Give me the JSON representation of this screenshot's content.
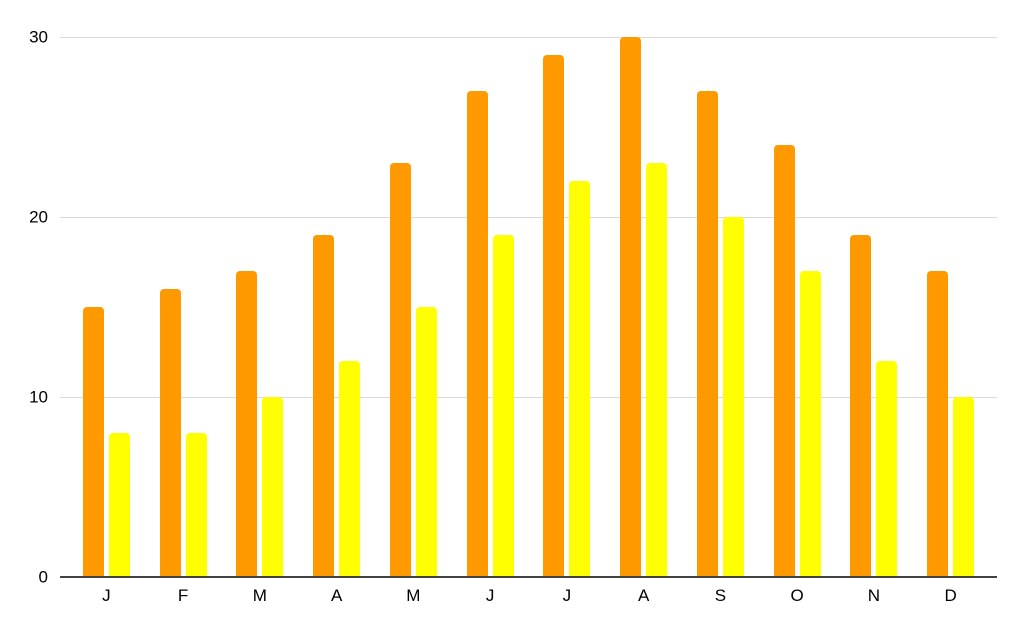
{
  "chart_data": {
    "type": "bar",
    "title": "",
    "xlabel": "",
    "ylabel": "",
    "categories": [
      "J",
      "F",
      "M",
      "A",
      "M",
      "J",
      "J",
      "A",
      "S",
      "O",
      "N",
      "D"
    ],
    "series": [
      {
        "name": "series-1-orange",
        "color": "#FF9900",
        "values": [
          15,
          16,
          17,
          19,
          23,
          27,
          29,
          30,
          27,
          24,
          19,
          17
        ]
      },
      {
        "name": "series-2-yellow",
        "color": "#FFFF00",
        "values": [
          8,
          8,
          10,
          12,
          15,
          19,
          22,
          23,
          20,
          17,
          12,
          10
        ]
      }
    ],
    "ylim": [
      0,
      30
    ],
    "yticks": [
      0,
      10,
      20,
      30
    ],
    "grid": true,
    "legend_position": "none"
  },
  "colors": {
    "background": "#FFFFFF",
    "gridline": "#D9D9D9",
    "axis_line": "#424242",
    "label_text": "#000000"
  }
}
